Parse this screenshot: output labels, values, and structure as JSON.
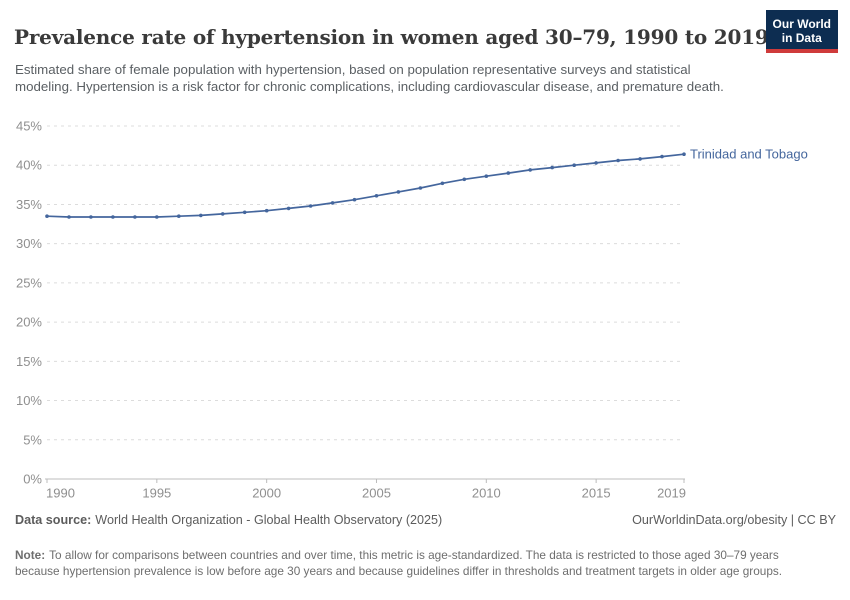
{
  "header": {
    "title": "Prevalence rate of hypertension in women aged 30–79, 1990 to 2019",
    "subtitle": "Estimated share of female population with hypertension, based on population representative surveys and statistical modeling. Hypertension is a risk factor for chronic complications, including cardiovascular disease, and premature death.",
    "logo": {
      "line1": "Our World",
      "line2": "in Data",
      "bg_color": "#0d2d51",
      "accent_color": "#cf3b3b"
    }
  },
  "chart_data": {
    "type": "line",
    "title": "Prevalence rate of hypertension in women aged 30–79, 1990 to 2019",
    "xlabel": "",
    "ylabel": "",
    "xlim": [
      1990,
      2019
    ],
    "ylim": [
      0,
      45
    ],
    "grid": "horizontal-dashed",
    "legend_position": "end-of-line-label",
    "x_ticks": [
      1990,
      1995,
      2000,
      2005,
      2010,
      2015,
      2019
    ],
    "y_tick_values": [
      0,
      5,
      10,
      15,
      20,
      25,
      30,
      35,
      40,
      45
    ],
    "y_tick_suffix": "%",
    "x": [
      1990,
      1991,
      1992,
      1993,
      1994,
      1995,
      1996,
      1997,
      1998,
      1999,
      2000,
      2001,
      2002,
      2003,
      2004,
      2005,
      2006,
      2007,
      2008,
      2009,
      2010,
      2011,
      2012,
      2013,
      2014,
      2015,
      2016,
      2017,
      2018,
      2019
    ],
    "series": [
      {
        "name": "Trinidad and Tobago",
        "color": "#44669d",
        "values": [
          33.5,
          33.4,
          33.4,
          33.4,
          33.4,
          33.4,
          33.5,
          33.6,
          33.8,
          34.0,
          34.2,
          34.5,
          34.8,
          35.2,
          35.6,
          36.1,
          36.6,
          37.1,
          37.7,
          38.2,
          38.6,
          39.0,
          39.4,
          39.7,
          40.0,
          40.3,
          40.6,
          40.8,
          41.1,
          41.4
        ]
      }
    ]
  },
  "footer": {
    "datasource_label": "Data source:",
    "datasource": "World Health Organization - Global Health Observatory (2025)",
    "license": "OurWorldinData.org/obesity | CC BY",
    "note_label": "Note:",
    "note": "To allow for comparisons between countries and over time, this metric is age-standardized. The data is restricted to those aged 30–79 years because hypertension prevalence is low before age 30 years and because guidelines differ in thresholds and treatment targets in older age groups."
  }
}
